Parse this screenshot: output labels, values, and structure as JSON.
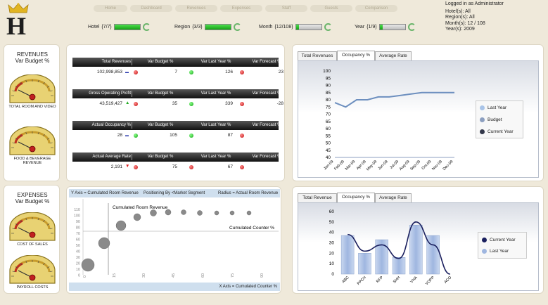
{
  "logo": {
    "letter": "H"
  },
  "nav": [
    {
      "label": "Home"
    },
    {
      "label": "Dashboard"
    },
    {
      "label": "Revenues"
    },
    {
      "label": "Expenses"
    },
    {
      "label": "Staff"
    },
    {
      "label": "Guests"
    },
    {
      "label": "Comparison"
    }
  ],
  "filters": [
    {
      "label": "Hotel",
      "value": "{7/7}",
      "progress": 1.0
    },
    {
      "label": "Region",
      "value": "{3/3}",
      "progress": 1.0
    },
    {
      "label": "Month",
      "value": "{12/108}",
      "progress": 0.11
    },
    {
      "label": "Year",
      "value": "{1/9}",
      "progress": 0.11
    }
  ],
  "user": {
    "logged_in": "Logged in as Administrator",
    "hotels": "Hotel(s): All",
    "regions": "Region(s): All",
    "months": "Month(s): 12 / 108",
    "years": "Year(s): 2009"
  },
  "revenues_panel": {
    "title1": "REVENUES",
    "title2": "Var Budget %",
    "gauges": [
      {
        "caption": "TOTAL ROOM AND VIDEO"
      },
      {
        "caption": "FOOD & BEVERAGE REVENUE"
      }
    ]
  },
  "expenses_panel": {
    "title1": "EXPENSES",
    "title2": "Var Budget %",
    "gauges": [
      {
        "caption": "COST OF SALES"
      },
      {
        "caption": "PAYROLL COSTS"
      }
    ]
  },
  "kpis": [
    {
      "name": "Total Revenues",
      "value": "102,998,853",
      "trend": "flat",
      "var_budget": "7",
      "vb_status": "red",
      "var_ly": "126",
      "vly_status": "green",
      "var_fc": "23",
      "vfc_status": "red"
    },
    {
      "name": "Gross Operating Profit",
      "value": "43,519,427",
      "trend": "up",
      "var_budget": "35",
      "vb_status": "red",
      "var_ly": "339",
      "vly_status": "green",
      "var_fc": "-28",
      "vfc_status": "red"
    },
    {
      "name": "Actual Occupancy %",
      "value": "28",
      "trend": "flat",
      "var_budget": "105",
      "vb_status": "green",
      "var_ly": "87",
      "vly_status": "green",
      "var_fc": "",
      "vfc_status": "red"
    },
    {
      "name": "Actual Average Rate",
      "value": "2,191",
      "trend": "down",
      "var_budget": "75",
      "vb_status": "red",
      "var_ly": "67",
      "vly_status": "red",
      "var_fc": "",
      "vfc_status": "red"
    }
  ],
  "kpi_columns": {
    "var_budget": "Var Budget %",
    "var_ly": "Var Last Year %",
    "var_fc": "Var Forecast %"
  },
  "bubble_panel": {
    "header_y": "Y Axis = Cumulated Room Revenue",
    "header_pos": "Positioning By <Market Segment",
    "header_r": "Radius = Actual Room Revenue",
    "footer": "X Axis = Cumulated Counter %",
    "inner_y_label": "Cumulated Room Revenue",
    "inner_x_label": "Cumulated Counter %",
    "y_ticks": [
      "110",
      "100",
      "90",
      "80",
      "70",
      "60",
      "50",
      "40",
      "30",
      "20",
      "10",
      "0"
    ],
    "x_ticks": [
      "0",
      "15",
      "30",
      "45",
      "60",
      "75",
      "90"
    ]
  },
  "top_chart_tabs": [
    {
      "label": "Total Revenues"
    },
    {
      "label": "Occupancy %"
    },
    {
      "label": "Average Rate"
    }
  ],
  "bottom_chart_tabs": [
    {
      "label": "Total Revenue"
    },
    {
      "label": "Occupancy %"
    },
    {
      "label": "Average Rate"
    }
  ],
  "chart_data": [
    {
      "type": "line",
      "categories": [
        "Jan-09",
        "Feb-09",
        "Mar-09",
        "Apr-09",
        "May-09",
        "Jun-09",
        "Jul-09",
        "Aug-09",
        "Sep-09",
        "Oct-09",
        "Nov-09",
        "Dec-09"
      ],
      "series": [
        {
          "name": "Last Year",
          "values": [
            null,
            null,
            null,
            null,
            null,
            null,
            null,
            null,
            null,
            null,
            null,
            null
          ],
          "color": "#a9c4e8"
        },
        {
          "name": "Budget",
          "values": [
            40,
            40,
            40,
            40,
            40,
            40,
            40,
            40,
            40,
            40,
            40,
            40
          ],
          "color": "#8c9fc0"
        },
        {
          "name": "Current Year",
          "values": [
            78,
            75,
            80,
            80,
            82,
            82,
            83,
            84,
            85,
            85,
            85,
            85
          ],
          "color": "#6d8fbf"
        }
      ],
      "ylim": [
        40,
        100
      ],
      "yticks": [
        40,
        45,
        50,
        55,
        60,
        65,
        70,
        75,
        80,
        85,
        90,
        95,
        100
      ],
      "legend": "right"
    },
    {
      "type": "bar",
      "categories": [
        "ABC",
        "PPCH",
        "RFP",
        "SHH",
        "VHA",
        "VOPP",
        "ACO"
      ],
      "series": [
        {
          "name": "Current Year",
          "values": [
            null,
            null,
            null,
            null,
            null,
            null,
            null
          ],
          "color": "#1a1f5e"
        },
        {
          "name": "Last Year",
          "values": [
            37,
            20,
            33,
            16,
            47,
            37,
            0
          ],
          "color": "#9fb6e0"
        }
      ],
      "line_values": [
        38,
        22,
        28,
        15,
        50,
        28,
        0
      ],
      "ylim": [
        0,
        60
      ],
      "yticks": [
        0,
        10,
        20,
        30,
        40,
        50,
        60
      ],
      "legend": "right"
    }
  ]
}
